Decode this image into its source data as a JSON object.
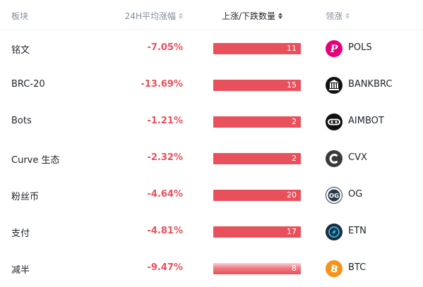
{
  "header": {
    "sector": "板块",
    "change": "24H平均涨幅",
    "updown": "上涨/下跌数量",
    "leader": "领涨"
  },
  "colors": {
    "negative": "#e8505b",
    "bar": "#e8505b",
    "muted_text": "#848e9c"
  },
  "rows": [
    {
      "sector": "铭文",
      "change": "-7.05%",
      "count": "11",
      "leader": "POLS",
      "icon": "polkastarter-icon"
    },
    {
      "sector": "BRC-20",
      "change": "-13.69%",
      "count": "15",
      "leader": "BANKBRC",
      "icon": "bank-icon"
    },
    {
      "sector": "Bots",
      "change": "-1.21%",
      "count": "2",
      "leader": "AIMBOT",
      "icon": "aimbot-icon"
    },
    {
      "sector": "Curve 生态",
      "change": "-2.32%",
      "count": "2",
      "leader": "CVX",
      "icon": "convex-icon"
    },
    {
      "sector": "粉丝币",
      "change": "-4.64%",
      "count": "20",
      "leader": "OG",
      "icon": "og-icon"
    },
    {
      "sector": "支付",
      "change": "-4.81%",
      "count": "17",
      "leader": "ETN",
      "icon": "electroneum-icon"
    },
    {
      "sector": "减半",
      "change": "-9.47%",
      "count": "8",
      "leader": "BTC",
      "icon": "bitcoin-icon"
    }
  ]
}
